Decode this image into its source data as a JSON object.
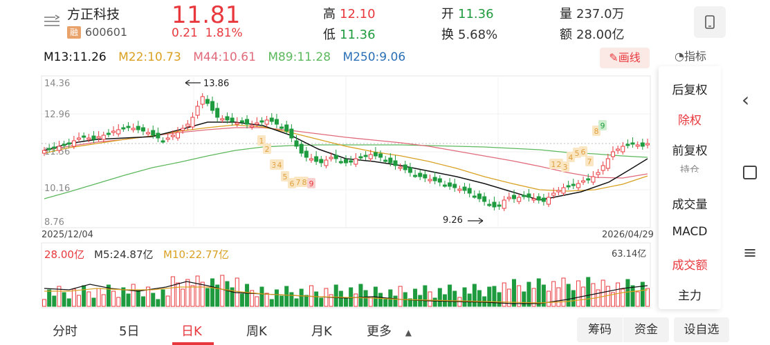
{
  "stock": {
    "name": "方正科技",
    "badge": "融",
    "code": "600601",
    "price": "11.81",
    "change": "0.21",
    "change_pct": "1.81%"
  },
  "quote": {
    "high_label": "高",
    "high": "12.10",
    "low_label": "低",
    "low": "11.36",
    "open_label": "开",
    "open": "11.36",
    "turnover_label": "换",
    "turnover": "5.68%",
    "volume_label": "量",
    "volume": "237.0万",
    "amount_label": "额",
    "amount": "28.00亿"
  },
  "ma": {
    "m13": "M13:11.26",
    "m22": "M22:10.73",
    "m44": "M44:10.61",
    "m89": "M89:11.28",
    "m250": "M250:9.06"
  },
  "draw_button": "画线",
  "indicator_label": "指标",
  "side_menu": [
    "后复权",
    "除权",
    "前复权",
    "持仓",
    "成交量",
    "MACD",
    "成交额",
    "主力"
  ],
  "chart": {
    "y_ticks": [
      "14.36",
      "12.96",
      "11.56",
      "10.16",
      "8.76"
    ],
    "start_date": "2025/12/04",
    "end_date": "2026/04/29",
    "high_annotation": "13.86",
    "low_annotation": "9.26",
    "numbers_top": [
      "1",
      "2",
      "3",
      "4",
      "5",
      "6",
      "7",
      "8",
      "9"
    ],
    "numbers_bottom_a": [
      "1",
      "2",
      "3",
      "4",
      "5",
      "6",
      "7",
      "8"
    ],
    "highlight_nine": "9"
  },
  "volume": {
    "total": "28.00亿",
    "m5": "M5:24.87亿",
    "m10": "M10:22.77亿",
    "max": "63.14亿"
  },
  "tabs": [
    "分时",
    "5日",
    "日K",
    "周K",
    "月K",
    "更多"
  ],
  "tools": [
    "筹码",
    "资金",
    "设自选"
  ],
  "colors": {
    "up": "#e8383d",
    "down": "#1e9b3e",
    "m13": "#111111",
    "m22": "#d9a021",
    "m44": "#e06a7a",
    "m89": "#5cb85c",
    "m250": "#2a6fb5"
  }
}
